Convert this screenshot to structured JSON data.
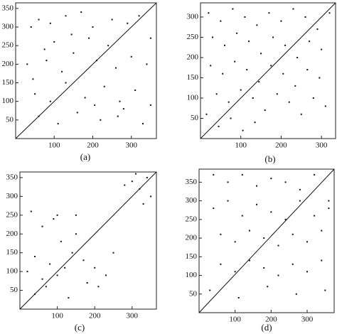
{
  "chart_data": [
    {
      "type": "scatter",
      "label": "(a)",
      "xlim": [
        0,
        365
      ],
      "ylim": [
        0,
        365
      ],
      "xticks": [
        100,
        200,
        300
      ],
      "yticks": [
        50,
        100,
        150,
        200,
        250,
        300,
        350
      ],
      "color": "#111",
      "diagonal": {
        "x": [
          0,
          365
        ],
        "values": [
          0,
          365
        ]
      },
      "points": {
        "x": [
          40,
          60,
          90,
          130,
          170,
          200,
          250,
          290,
          320,
          30,
          80,
          120,
          150,
          210,
          260,
          300,
          340,
          50,
          90,
          130,
          180,
          230,
          270,
          310,
          350,
          60,
          110,
          160,
          220,
          280,
          330,
          100,
          190,
          240,
          350,
          45,
          75,
          145,
          205,
          265
        ],
        "values": [
          300,
          320,
          310,
          330,
          340,
          300,
          320,
          310,
          330,
          200,
          210,
          180,
          230,
          210,
          190,
          220,
          200,
          120,
          100,
          150,
          110,
          140,
          100,
          130,
          90,
          60,
          40,
          70,
          50,
          80,
          40,
          260,
          270,
          250,
          270,
          160,
          240,
          280,
          90,
          60
        ]
      }
    },
    {
      "type": "scatter",
      "label": "(b)",
      "xlim": [
        0,
        335
      ],
      "ylim": [
        0,
        335
      ],
      "xticks": [
        100,
        200,
        300
      ],
      "yticks": [
        50,
        100,
        150,
        200,
        250,
        300
      ],
      "color": "#111",
      "diagonal": {
        "x": [
          0,
          335
        ],
        "values": [
          0,
          335
        ]
      },
      "points": {
        "x": [
          20,
          50,
          80,
          110,
          140,
          170,
          200,
          230,
          260,
          290,
          320,
          30,
          60,
          90,
          120,
          150,
          180,
          210,
          240,
          270,
          300,
          25,
          55,
          85,
          115,
          145,
          175,
          205,
          235,
          265,
          295,
          40,
          70,
          100,
          130,
          160,
          190,
          220,
          250,
          280,
          310,
          15,
          45,
          75,
          105,
          135
        ],
        "values": [
          310,
          290,
          320,
          300,
          280,
          310,
          290,
          320,
          300,
          270,
          310,
          250,
          230,
          260,
          240,
          210,
          250,
          230,
          200,
          240,
          220,
          180,
          160,
          190,
          170,
          140,
          180,
          160,
          130,
          170,
          150,
          110,
          90,
          120,
          100,
          70,
          110,
          90,
          60,
          100,
          80,
          60,
          30,
          50,
          20,
          40
        ]
      }
    },
    {
      "type": "scatter",
      "label": "(c)",
      "xlim": [
        0,
        365
      ],
      "ylim": [
        0,
        365
      ],
      "xticks": [
        100,
        200,
        300
      ],
      "yticks": [
        50,
        100,
        150,
        200,
        250,
        300,
        350
      ],
      "color": "#111",
      "diagonal": {
        "x": [
          0,
          365
        ],
        "values": [
          0,
          365
        ]
      },
      "points": {
        "x": [
          20,
          40,
          60,
          80,
          100,
          120,
          140,
          60,
          90,
          110,
          150,
          170,
          200,
          230,
          250,
          40,
          70,
          130,
          180,
          300,
          320,
          340,
          350,
          310,
          330,
          280,
          30,
          100,
          210,
          150
        ],
        "values": [
          100,
          140,
          80,
          120,
          90,
          110,
          150,
          220,
          240,
          180,
          200,
          130,
          110,
          90,
          150,
          40,
          60,
          30,
          70,
          340,
          320,
          350,
          300,
          360,
          280,
          330,
          260,
          250,
          60,
          250
        ]
      }
    },
    {
      "type": "scatter",
      "label": "(d)",
      "xlim": [
        0,
        375
      ],
      "ylim": [
        0,
        385
      ],
      "xticks": [
        100,
        200,
        300
      ],
      "yticks": [
        50,
        100,
        150,
        200,
        250,
        300,
        350
      ],
      "color": "#111",
      "diagonal": {
        "x": [
          0,
          375
        ],
        "values": [
          0,
          385
        ]
      },
      "points": {
        "x": [
          40,
          80,
          120,
          160,
          200,
          240,
          280,
          320,
          360,
          40,
          80,
          120,
          160,
          200,
          240,
          280,
          320,
          360,
          60,
          100,
          140,
          180,
          220,
          260,
          300,
          340,
          60,
          100,
          140,
          180,
          220,
          260,
          300,
          340,
          30,
          110,
          190,
          270,
          350
        ],
        "values": [
          370,
          350,
          370,
          340,
          360,
          350,
          330,
          370,
          300,
          280,
          300,
          260,
          290,
          270,
          250,
          300,
          260,
          280,
          210,
          190,
          220,
          200,
          180,
          210,
          190,
          220,
          130,
          110,
          140,
          120,
          100,
          130,
          110,
          140,
          60,
          40,
          70,
          50,
          60
        ]
      }
    }
  ]
}
